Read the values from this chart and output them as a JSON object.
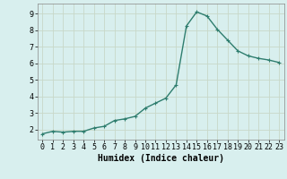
{
  "x": [
    0,
    1,
    2,
    3,
    4,
    5,
    6,
    7,
    8,
    9,
    10,
    11,
    12,
    13,
    14,
    15,
    16,
    17,
    18,
    19,
    20,
    21,
    22,
    23
  ],
  "y": [
    1.75,
    1.9,
    1.85,
    1.9,
    1.9,
    2.1,
    2.2,
    2.55,
    2.65,
    2.8,
    3.3,
    3.6,
    3.9,
    4.7,
    8.25,
    9.1,
    8.85,
    8.05,
    7.4,
    6.75,
    6.45,
    6.3,
    6.2,
    6.05
  ],
  "line_color": "#2e7d6e",
  "marker": "+",
  "marker_size": 3,
  "linewidth": 1.0,
  "xlabel": "Humidex (Indice chaleur)",
  "xlabel_fontsize": 7,
  "xlim": [
    -0.5,
    23.5
  ],
  "ylim": [
    1.4,
    9.6
  ],
  "yticks": [
    2,
    3,
    4,
    5,
    6,
    7,
    8,
    9
  ],
  "xticks": [
    0,
    1,
    2,
    3,
    4,
    5,
    6,
    7,
    8,
    9,
    10,
    11,
    12,
    13,
    14,
    15,
    16,
    17,
    18,
    19,
    20,
    21,
    22,
    23
  ],
  "grid_color": "#c8d8c8",
  "bg_color": "#d8efee",
  "tick_fontsize": 6,
  "marker_color": "#2e7d6e"
}
